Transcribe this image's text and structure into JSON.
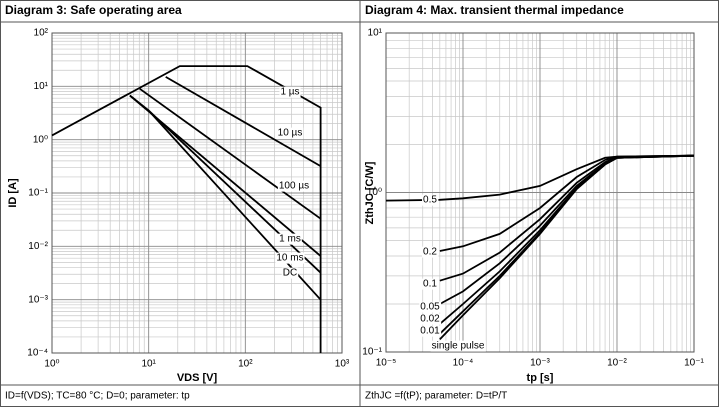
{
  "chart_data": [
    {
      "type": "line",
      "title": "Diagram 3: Safe operating area",
      "caption": "ID=f(VDS); TC=80 °C; D=0; parameter: tp",
      "xlabel": "VDS [V]",
      "ylabel": "ID [A]",
      "xscale": "log",
      "yscale": "log",
      "grid": true,
      "minor_grid": true,
      "color": "#000000",
      "xlim": [
        1,
        1000
      ],
      "ylim": [
        0.0001,
        100
      ],
      "xticks": [
        {
          "value": 1,
          "label": "10⁰"
        },
        {
          "value": 10,
          "label": "10¹"
        },
        {
          "value": 100,
          "label": "10²"
        },
        {
          "value": 1000,
          "label": "10³"
        }
      ],
      "yticks": [
        {
          "value": 0.0001,
          "label": "10⁻⁴"
        },
        {
          "value": 0.001,
          "label": "10⁻³"
        },
        {
          "value": 0.01,
          "label": "10⁻²"
        },
        {
          "value": 0.1,
          "label": "10⁻¹"
        },
        {
          "value": 1,
          "label": "10⁰"
        },
        {
          "value": 10,
          "label": "10¹"
        },
        {
          "value": 100,
          "label": "10²"
        }
      ],
      "series": [
        {
          "name": "1 µs",
          "x": [
            1,
            21,
            105,
            600,
            600
          ],
          "values": [
            1.2,
            24,
            24,
            4,
            0.0001
          ]
        },
        {
          "name": "10 µs",
          "x": [
            15,
            600
          ],
          "values": [
            15,
            0.32
          ]
        },
        {
          "name": "100 µs",
          "x": [
            8.1,
            600
          ],
          "values": [
            9,
            0.033
          ]
        },
        {
          "name": "1 ms",
          "x": [
            6.4,
            600
          ],
          "values": [
            6.7,
            0.0066
          ]
        },
        {
          "name": "10 ms",
          "x": [
            6.4,
            10,
            600
          ],
          "values": [
            6.7,
            3.5,
            0.0032
          ]
        },
        {
          "name": "DC",
          "x": [
            6.4,
            10,
            600
          ],
          "values": [
            6.7,
            3.5,
            0.001
          ]
        }
      ]
    },
    {
      "type": "line",
      "title": "Diagram 4: Max. transient thermal impedance",
      "caption": "ZthJC =f(tP); parameter: D=tP/T",
      "xlabel": "tp [s]",
      "ylabel": "ZthJC [C/W]",
      "xscale": "log",
      "yscale": "log",
      "grid": true,
      "minor_grid": true,
      "color": "#000000",
      "xlim": [
        1e-05,
        0.1
      ],
      "ylim": [
        0.1,
        10
      ],
      "xticks": [
        {
          "value": 1e-05,
          "label": "10⁻⁵"
        },
        {
          "value": 0.0001,
          "label": "10⁻⁴"
        },
        {
          "value": 0.001,
          "label": "10⁻³"
        },
        {
          "value": 0.01,
          "label": "10⁻²"
        },
        {
          "value": 0.1,
          "label": "10⁻¹"
        }
      ],
      "yticks": [
        {
          "value": 0.1,
          "label": "10⁻¹"
        },
        {
          "value": 1,
          "label": "10⁰"
        },
        {
          "value": 10,
          "label": "10¹"
        }
      ],
      "x": [
        1e-05,
        5e-05,
        0.0001,
        0.0003,
        0.001,
        0.003,
        0.007,
        0.01,
        0.1
      ],
      "series": [
        {
          "name": "0.5",
          "values": [
            0.89,
            0.9,
            0.92,
            0.97,
            1.1,
            1.4,
            1.65,
            1.68,
            1.7
          ]
        },
        {
          "name": "0.2",
          "values": [
            null,
            0.43,
            0.46,
            0.55,
            0.8,
            1.25,
            1.6,
            1.68,
            1.7
          ]
        },
        {
          "name": "0.1",
          "values": [
            null,
            0.28,
            0.31,
            0.42,
            0.68,
            1.15,
            1.55,
            1.67,
            1.7
          ]
        },
        {
          "name": "0.05",
          "values": [
            null,
            0.2,
            0.24,
            0.36,
            0.62,
            1.1,
            1.52,
            1.66,
            1.7
          ]
        },
        {
          "name": "0.02",
          "values": [
            null,
            0.15,
            0.2,
            0.32,
            0.58,
            1.07,
            1.5,
            1.65,
            1.7
          ]
        },
        {
          "name": "0.01",
          "values": [
            null,
            0.13,
            0.18,
            0.3,
            0.56,
            1.06,
            1.5,
            1.65,
            1.7
          ]
        },
        {
          "name": "single pulse",
          "values": [
            null,
            0.12,
            0.17,
            0.29,
            0.55,
            1.05,
            1.5,
            1.65,
            1.7
          ]
        }
      ]
    }
  ]
}
